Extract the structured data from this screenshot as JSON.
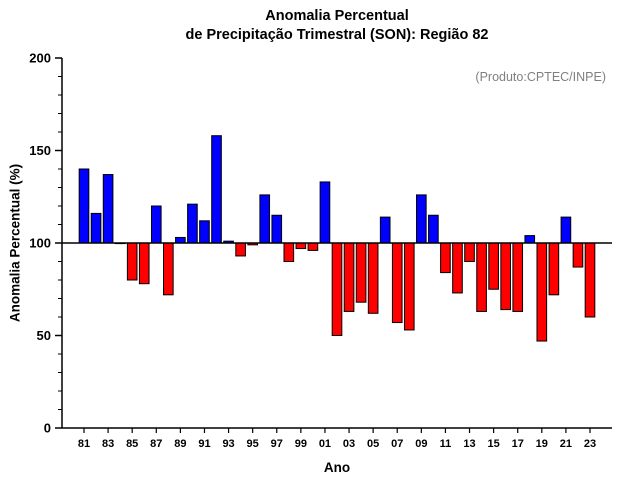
{
  "title_line1": "Anomalia Percentual",
  "title_line2": "de Precipitação Trimestral (SON): Região 82",
  "annotation": "(Produto:CPTEC/INPE)",
  "colors": {
    "positive_bar": "#0000ff",
    "negative_bar": "#ff0000",
    "bar_outline": "#000000",
    "axis": "#000000",
    "annotation_text": "#808080",
    "background": "#ffffff"
  },
  "chart_data": {
    "type": "bar",
    "title": "Anomalia Percentual de Precipitação Trimestral (SON): Região 82",
    "xlabel": "Ano",
    "ylabel": "Anomalia Percentual (%)",
    "baseline": 100,
    "ylim": [
      0,
      200
    ],
    "yticks": [
      0,
      50,
      100,
      150,
      200
    ],
    "y_minor_step": 10,
    "grid": false,
    "legend": null,
    "x_tick_labels": [
      "81",
      "83",
      "85",
      "87",
      "89",
      "91",
      "93",
      "95",
      "97",
      "99",
      "01",
      "03",
      "05",
      "07",
      "09",
      "11",
      "13",
      "15",
      "17",
      "19",
      "21",
      "23"
    ],
    "years": [
      1981,
      1982,
      1983,
      1984,
      1985,
      1986,
      1987,
      1988,
      1989,
      1990,
      1991,
      1992,
      1993,
      1994,
      1995,
      1996,
      1997,
      1998,
      1999,
      2000,
      2001,
      2002,
      2003,
      2004,
      2005,
      2006,
      2007,
      2008,
      2009,
      2010,
      2011,
      2012,
      2013,
      2014,
      2015,
      2016,
      2017,
      2018,
      2019,
      2020,
      2021,
      2022,
      2023
    ],
    "values": [
      140,
      116,
      137,
      100,
      80,
      78,
      120,
      72,
      103,
      121,
      112,
      158,
      101,
      93,
      99,
      126,
      115,
      90,
      97,
      96,
      133,
      50,
      63,
      68,
      62,
      114,
      57,
      53,
      126,
      115,
      84,
      73,
      90,
      63,
      75,
      64,
      63,
      104,
      47,
      72,
      114,
      87,
      60
    ]
  }
}
